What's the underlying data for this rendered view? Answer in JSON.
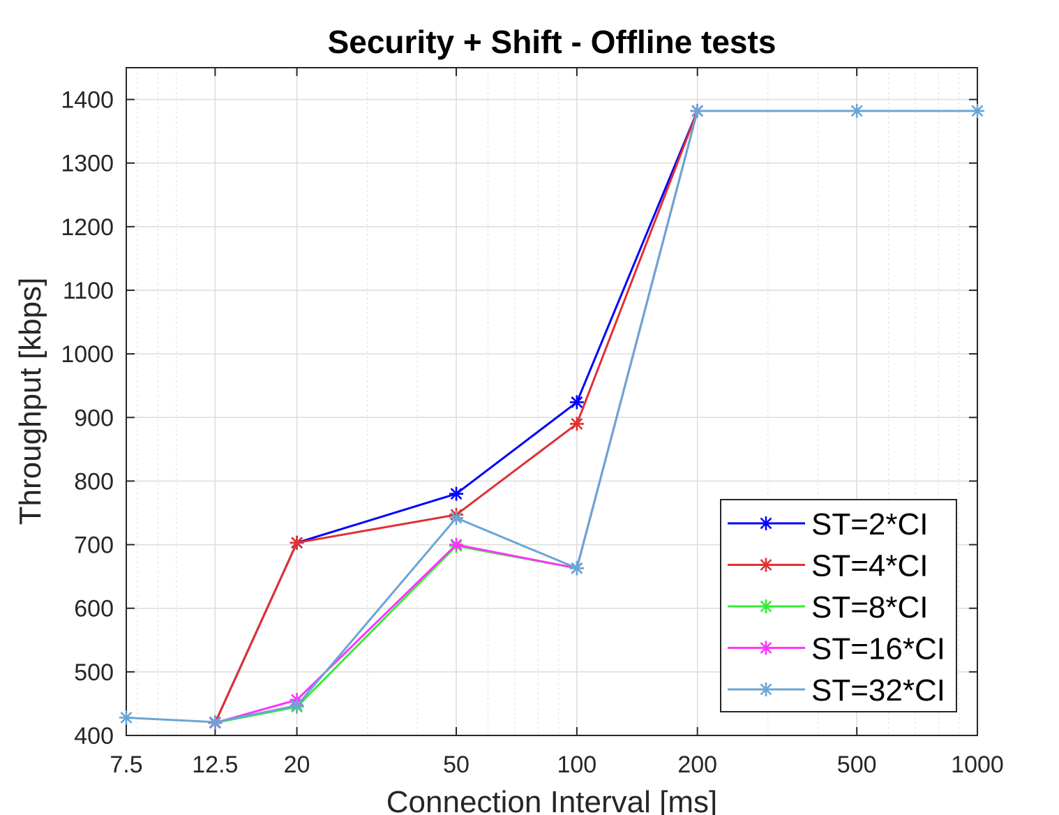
{
  "chart_data": {
    "type": "line",
    "title": "Security + Shift - Offline tests",
    "xlabel": "Connection Interval [ms]",
    "ylabel": "Throughput [kbps]",
    "xscale": "log",
    "xlim": [
      7.5,
      1000
    ],
    "ylim": [
      400,
      1450
    ],
    "x_ticks": [
      7.5,
      12.5,
      20,
      50,
      100,
      200,
      500,
      1000
    ],
    "x_tick_labels": [
      "7.5",
      "12.5",
      "20",
      "50",
      "100",
      "200",
      "500",
      "1000"
    ],
    "y_ticks": [
      400,
      500,
      600,
      700,
      800,
      900,
      1000,
      1100,
      1200,
      1300,
      1400
    ],
    "y_tick_labels": [
      "400",
      "500",
      "600",
      "700",
      "800",
      "900",
      "1000",
      "1100",
      "1200",
      "1300",
      "1400"
    ],
    "grid": true,
    "legend_position": "lower-right",
    "series": [
      {
        "name": "ST=2*CI",
        "color": "#0000ff",
        "x": [
          12.5,
          20,
          50,
          100,
          200
        ],
        "y": [
          420,
          703,
          780,
          924,
          1382
        ]
      },
      {
        "name": "ST=4*CI",
        "color": "#e03030",
        "x": [
          12.5,
          20,
          50,
          100,
          200
        ],
        "y": [
          420,
          703,
          747,
          890,
          1382
        ]
      },
      {
        "name": "ST=8*CI",
        "color": "#33ee33",
        "x": [
          12.5,
          20,
          50,
          100,
          200
        ],
        "y": [
          420,
          445,
          698,
          663,
          1382
        ]
      },
      {
        "name": "ST=16*CI",
        "color": "#ff33ff",
        "x": [
          12.5,
          20,
          50,
          100,
          200
        ],
        "y": [
          420,
          456,
          700,
          663,
          1382
        ]
      },
      {
        "name": "ST=32*CI",
        "color": "#6aa5d5",
        "x": [
          7.5,
          12.5,
          20,
          50,
          100,
          200,
          500,
          1000
        ],
        "y": [
          428,
          421,
          447,
          742,
          663,
          1382,
          1382,
          1382
        ]
      }
    ]
  }
}
